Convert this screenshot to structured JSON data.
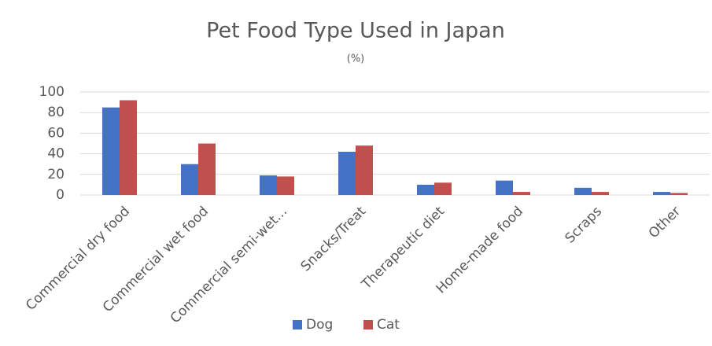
{
  "chart_data": {
    "type": "bar",
    "title": "Pet Food Type Used in Japan",
    "subtitle": "(%)",
    "categories": [
      "Commercial dry food",
      "Commercial wet food",
      "Commercial semi-wet...",
      "Snacks/Treat",
      "Therapeutic diet",
      "Home-made food",
      "Scraps",
      "Other"
    ],
    "series": [
      {
        "name": "Dog",
        "color": "#4472c4",
        "values": [
          85,
          30,
          19,
          42,
          10,
          14,
          7,
          3
        ]
      },
      {
        "name": "Cat",
        "color": "#c0504d",
        "values": [
          92,
          50,
          18,
          48,
          12,
          3,
          3,
          2
        ]
      }
    ],
    "ylim": [
      0,
      100
    ],
    "yticks": [
      0,
      20,
      40,
      60,
      80,
      100
    ],
    "grid": true,
    "legend": "bottom"
  }
}
